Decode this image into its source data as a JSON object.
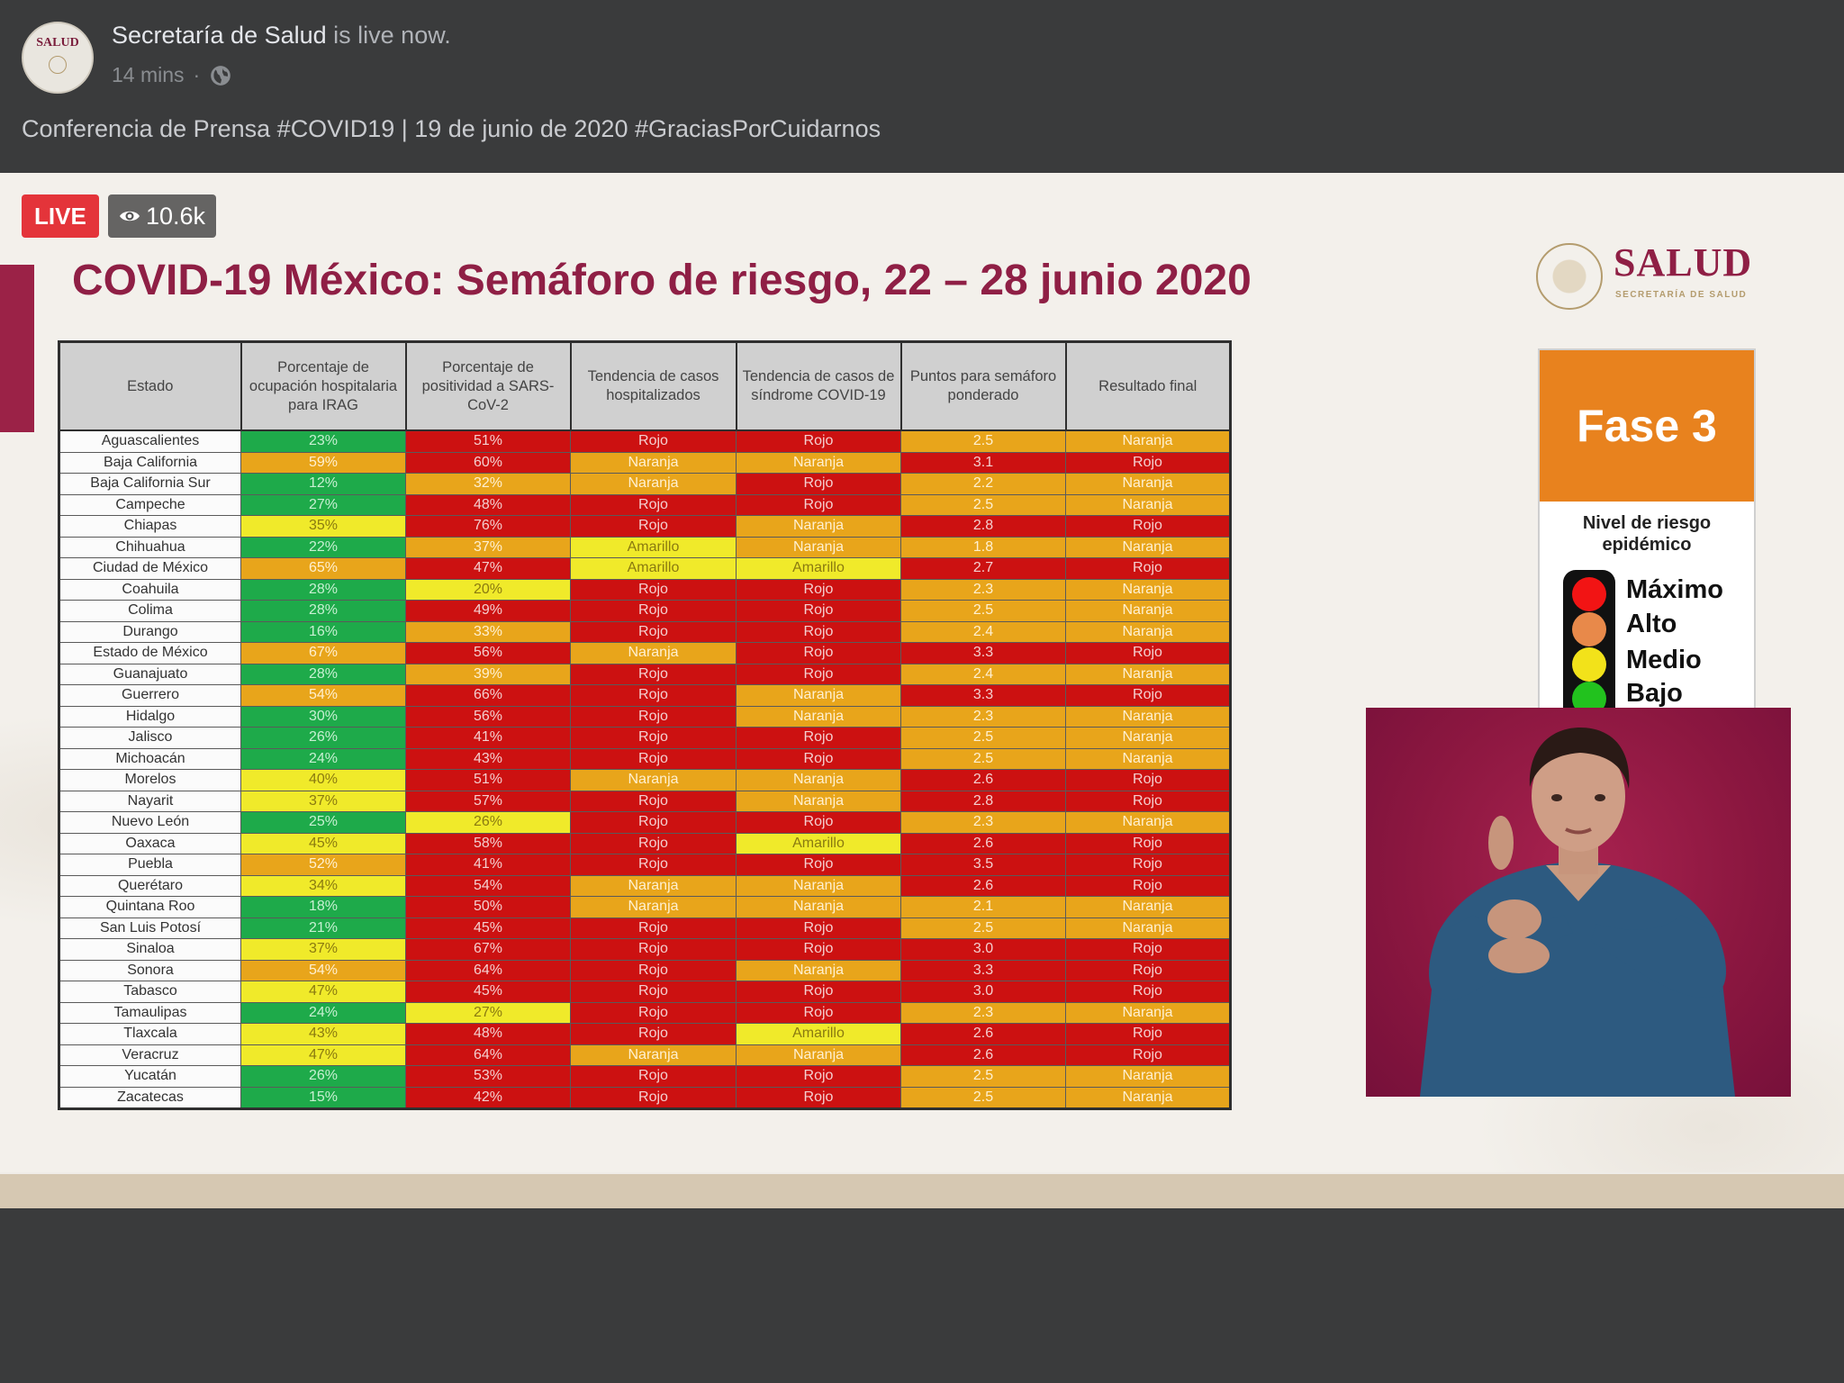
{
  "post": {
    "page_name": "Secretaría de Salud",
    "live_suffix": " is live now.",
    "time": "14 mins",
    "separator": "·",
    "title": "Conferencia de Prensa #COVID19 | 19 de junio de 2020 #GraciasPorCuidarnos",
    "avatar_label": "SALUD"
  },
  "video": {
    "live_label": "LIVE",
    "viewers": "10.6k"
  },
  "slide": {
    "title": "COVID-19 México: Semáforo de riesgo, 22 – 28 junio 2020",
    "logo_text": "SALUD",
    "logo_sub": "SECRETARÍA DE SALUD",
    "phase": "Fase 3",
    "risk_heading": "Nivel de riesgo epidémico",
    "levels": [
      "Máximo",
      "Alto",
      "Medio",
      "Bajo"
    ]
  },
  "colors": {
    "rojo": "#cc1111",
    "naranja": "#e8a51b",
    "amarillo": "#f0ea2a",
    "verde": "#1eaa4a",
    "brand": "#8f1f45"
  },
  "table": {
    "headers": [
      "Estado",
      "Porcentaje de ocupación hospitalaria para IRAG",
      "Porcentaje de positividad a SARS-CoV-2",
      "Tendencia de casos hospitalizados",
      "Tendencia de casos de síndrome COVID-19",
      "Puntos para semáforo ponderado",
      "Resultado final"
    ],
    "rows": [
      {
        "estado": "Aguascalientes",
        "ocupacion": "23%",
        "ocupacion_color": "verde",
        "positividad": "51%",
        "positividad_color": "rojo",
        "hosp": "Rojo",
        "sindrome": "Rojo",
        "puntos": "2.5",
        "puntos_color": "naranja",
        "resultado": "Naranja"
      },
      {
        "estado": "Baja California",
        "ocupacion": "59%",
        "ocupacion_color": "naranja",
        "positividad": "60%",
        "positividad_color": "rojo",
        "hosp": "Naranja",
        "sindrome": "Naranja",
        "puntos": "3.1",
        "puntos_color": "rojo",
        "resultado": "Rojo"
      },
      {
        "estado": "Baja California Sur",
        "ocupacion": "12%",
        "ocupacion_color": "verde",
        "positividad": "32%",
        "positividad_color": "naranja",
        "hosp": "Naranja",
        "sindrome": "Rojo",
        "puntos": "2.2",
        "puntos_color": "naranja",
        "resultado": "Naranja"
      },
      {
        "estado": "Campeche",
        "ocupacion": "27%",
        "ocupacion_color": "verde",
        "positividad": "48%",
        "positividad_color": "rojo",
        "hosp": "Rojo",
        "sindrome": "Rojo",
        "puntos": "2.5",
        "puntos_color": "naranja",
        "resultado": "Naranja"
      },
      {
        "estado": "Chiapas",
        "ocupacion": "35%",
        "ocupacion_color": "amarillo",
        "positividad": "76%",
        "positividad_color": "rojo",
        "hosp": "Rojo",
        "sindrome": "Naranja",
        "puntos": "2.8",
        "puntos_color": "rojo",
        "resultado": "Rojo"
      },
      {
        "estado": "Chihuahua",
        "ocupacion": "22%",
        "ocupacion_color": "verde",
        "positividad": "37%",
        "positividad_color": "naranja",
        "hosp": "Amarillo",
        "sindrome": "Naranja",
        "puntos": "1.8",
        "puntos_color": "naranja",
        "resultado": "Naranja"
      },
      {
        "estado": "Ciudad de México",
        "ocupacion": "65%",
        "ocupacion_color": "naranja",
        "positividad": "47%",
        "positividad_color": "rojo",
        "hosp": "Amarillo",
        "sindrome": "Amarillo",
        "puntos": "2.7",
        "puntos_color": "rojo",
        "resultado": "Rojo"
      },
      {
        "estado": "Coahuila",
        "ocupacion": "28%",
        "ocupacion_color": "verde",
        "positividad": "20%",
        "positividad_color": "amarillo",
        "hosp": "Rojo",
        "sindrome": "Rojo",
        "puntos": "2.3",
        "puntos_color": "naranja",
        "resultado": "Naranja"
      },
      {
        "estado": "Colima",
        "ocupacion": "28%",
        "ocupacion_color": "verde",
        "positividad": "49%",
        "positividad_color": "rojo",
        "hosp": "Rojo",
        "sindrome": "Rojo",
        "puntos": "2.5",
        "puntos_color": "naranja",
        "resultado": "Naranja"
      },
      {
        "estado": "Durango",
        "ocupacion": "16%",
        "ocupacion_color": "verde",
        "positividad": "33%",
        "positividad_color": "naranja",
        "hosp": "Rojo",
        "sindrome": "Rojo",
        "puntos": "2.4",
        "puntos_color": "naranja",
        "resultado": "Naranja"
      },
      {
        "estado": "Estado de México",
        "ocupacion": "67%",
        "ocupacion_color": "naranja",
        "positividad": "56%",
        "positividad_color": "rojo",
        "hosp": "Naranja",
        "sindrome": "Rojo",
        "puntos": "3.3",
        "puntos_color": "rojo",
        "resultado": "Rojo"
      },
      {
        "estado": "Guanajuato",
        "ocupacion": "28%",
        "ocupacion_color": "verde",
        "positividad": "39%",
        "positividad_color": "naranja",
        "hosp": "Rojo",
        "sindrome": "Rojo",
        "puntos": "2.4",
        "puntos_color": "naranja",
        "resultado": "Naranja"
      },
      {
        "estado": "Guerrero",
        "ocupacion": "54%",
        "ocupacion_color": "naranja",
        "positividad": "66%",
        "positividad_color": "rojo",
        "hosp": "Rojo",
        "sindrome": "Naranja",
        "puntos": "3.3",
        "puntos_color": "rojo",
        "resultado": "Rojo"
      },
      {
        "estado": "Hidalgo",
        "ocupacion": "30%",
        "ocupacion_color": "verde",
        "positividad": "56%",
        "positividad_color": "rojo",
        "hosp": "Rojo",
        "sindrome": "Naranja",
        "puntos": "2.3",
        "puntos_color": "naranja",
        "resultado": "Naranja"
      },
      {
        "estado": "Jalisco",
        "ocupacion": "26%",
        "ocupacion_color": "verde",
        "positividad": "41%",
        "positividad_color": "rojo",
        "hosp": "Rojo",
        "sindrome": "Rojo",
        "puntos": "2.5",
        "puntos_color": "naranja",
        "resultado": "Naranja"
      },
      {
        "estado": "Michoacán",
        "ocupacion": "24%",
        "ocupacion_color": "verde",
        "positividad": "43%",
        "positividad_color": "rojo",
        "hosp": "Rojo",
        "sindrome": "Rojo",
        "puntos": "2.5",
        "puntos_color": "naranja",
        "resultado": "Naranja"
      },
      {
        "estado": "Morelos",
        "ocupacion": "40%",
        "ocupacion_color": "amarillo",
        "positividad": "51%",
        "positividad_color": "rojo",
        "hosp": "Naranja",
        "sindrome": "Naranja",
        "puntos": "2.6",
        "puntos_color": "rojo",
        "resultado": "Rojo"
      },
      {
        "estado": "Nayarit",
        "ocupacion": "37%",
        "ocupacion_color": "amarillo",
        "positividad": "57%",
        "positividad_color": "rojo",
        "hosp": "Rojo",
        "sindrome": "Naranja",
        "puntos": "2.8",
        "puntos_color": "rojo",
        "resultado": "Rojo"
      },
      {
        "estado": "Nuevo León",
        "ocupacion": "25%",
        "ocupacion_color": "verde",
        "positividad": "26%",
        "positividad_color": "amarillo",
        "hosp": "Rojo",
        "sindrome": "Rojo",
        "puntos": "2.3",
        "puntos_color": "naranja",
        "resultado": "Naranja"
      },
      {
        "estado": "Oaxaca",
        "ocupacion": "45%",
        "ocupacion_color": "amarillo",
        "positividad": "58%",
        "positividad_color": "rojo",
        "hosp": "Rojo",
        "sindrome": "Amarillo",
        "puntos": "2.6",
        "puntos_color": "rojo",
        "resultado": "Rojo"
      },
      {
        "estado": "Puebla",
        "ocupacion": "52%",
        "ocupacion_color": "naranja",
        "positividad": "41%",
        "positividad_color": "rojo",
        "hosp": "Rojo",
        "sindrome": "Rojo",
        "puntos": "3.5",
        "puntos_color": "rojo",
        "resultado": "Rojo"
      },
      {
        "estado": "Querétaro",
        "ocupacion": "34%",
        "ocupacion_color": "amarillo",
        "positividad": "54%",
        "positividad_color": "rojo",
        "hosp": "Naranja",
        "sindrome": "Naranja",
        "puntos": "2.6",
        "puntos_color": "rojo",
        "resultado": "Rojo"
      },
      {
        "estado": "Quintana Roo",
        "ocupacion": "18%",
        "ocupacion_color": "verde",
        "positividad": "50%",
        "positividad_color": "rojo",
        "hosp": "Naranja",
        "sindrome": "Naranja",
        "puntos": "2.1",
        "puntos_color": "naranja",
        "resultado": "Naranja"
      },
      {
        "estado": "San Luis Potosí",
        "ocupacion": "21%",
        "ocupacion_color": "verde",
        "positividad": "45%",
        "positividad_color": "rojo",
        "hosp": "Rojo",
        "sindrome": "Rojo",
        "puntos": "2.5",
        "puntos_color": "naranja",
        "resultado": "Naranja"
      },
      {
        "estado": "Sinaloa",
        "ocupacion": "37%",
        "ocupacion_color": "amarillo",
        "positividad": "67%",
        "positividad_color": "rojo",
        "hosp": "Rojo",
        "sindrome": "Rojo",
        "puntos": "3.0",
        "puntos_color": "rojo",
        "resultado": "Rojo"
      },
      {
        "estado": "Sonora",
        "ocupacion": "54%",
        "ocupacion_color": "naranja",
        "positividad": "64%",
        "positividad_color": "rojo",
        "hosp": "Rojo",
        "sindrome": "Naranja",
        "puntos": "3.3",
        "puntos_color": "rojo",
        "resultado": "Rojo"
      },
      {
        "estado": "Tabasco",
        "ocupacion": "47%",
        "ocupacion_color": "amarillo",
        "positividad": "45%",
        "positividad_color": "rojo",
        "hosp": "Rojo",
        "sindrome": "Rojo",
        "puntos": "3.0",
        "puntos_color": "rojo",
        "resultado": "Rojo"
      },
      {
        "estado": "Tamaulipas",
        "ocupacion": "24%",
        "ocupacion_color": "verde",
        "positividad": "27%",
        "positividad_color": "amarillo",
        "hosp": "Rojo",
        "sindrome": "Rojo",
        "puntos": "2.3",
        "puntos_color": "naranja",
        "resultado": "Naranja"
      },
      {
        "estado": "Tlaxcala",
        "ocupacion": "43%",
        "ocupacion_color": "amarillo",
        "positividad": "48%",
        "positividad_color": "rojo",
        "hosp": "Rojo",
        "sindrome": "Amarillo",
        "puntos": "2.6",
        "puntos_color": "rojo",
        "resultado": "Rojo"
      },
      {
        "estado": "Veracruz",
        "ocupacion": "47%",
        "ocupacion_color": "amarillo",
        "positividad": "64%",
        "positividad_color": "rojo",
        "hosp": "Naranja",
        "sindrome": "Naranja",
        "puntos": "2.6",
        "puntos_color": "rojo",
        "resultado": "Rojo"
      },
      {
        "estado": "Yucatán",
        "ocupacion": "26%",
        "ocupacion_color": "verde",
        "positividad": "53%",
        "positividad_color": "rojo",
        "hosp": "Rojo",
        "sindrome": "Rojo",
        "puntos": "2.5",
        "puntos_color": "naranja",
        "resultado": "Naranja"
      },
      {
        "estado": "Zacatecas",
        "ocupacion": "15%",
        "ocupacion_color": "verde",
        "positividad": "42%",
        "positividad_color": "rojo",
        "hosp": "Rojo",
        "sindrome": "Rojo",
        "puntos": "2.5",
        "puntos_color": "naranja",
        "resultado": "Naranja"
      }
    ]
  }
}
